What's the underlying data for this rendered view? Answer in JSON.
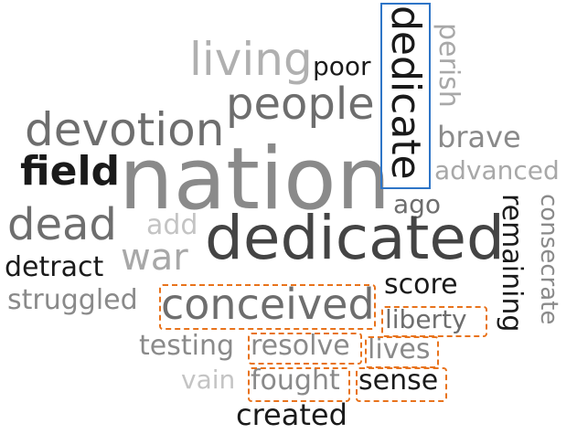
{
  "words": {
    "living": "living",
    "poor": "poor",
    "people": "people",
    "devotion": "devotion",
    "field": "field",
    "nation": "nation",
    "dead": "dead",
    "add": "add",
    "war": "war",
    "detract": "detract",
    "struggled": "struggled",
    "dedicated": "dedicated",
    "dedicate": "dedicate",
    "perish": "perish",
    "brave": "brave",
    "advanced": "advanced",
    "ago": "ago",
    "remaining": "remaining",
    "consecrate": "consecrate",
    "score": "score",
    "conceived": "conceived",
    "liberty": "liberty",
    "testing": "testing",
    "resolve": "resolve",
    "lives": "lives",
    "vain": "vain",
    "fought": "fought",
    "sense": "sense",
    "created": "created"
  },
  "colors": {
    "blue_highlight": "#2e75c7",
    "orange_highlight": "#e8731c",
    "black": "#1a1a1a",
    "dark_gray": "#444444",
    "mid_gray": "#6e6e6e",
    "light_gray": "#a8a8a8",
    "faint_gray": "#c4c4c4"
  },
  "highlights": {
    "blue": [
      "dedicate"
    ],
    "orange": [
      "conceived",
      "liberty",
      "resolve",
      "lives",
      "fought",
      "sense"
    ]
  }
}
